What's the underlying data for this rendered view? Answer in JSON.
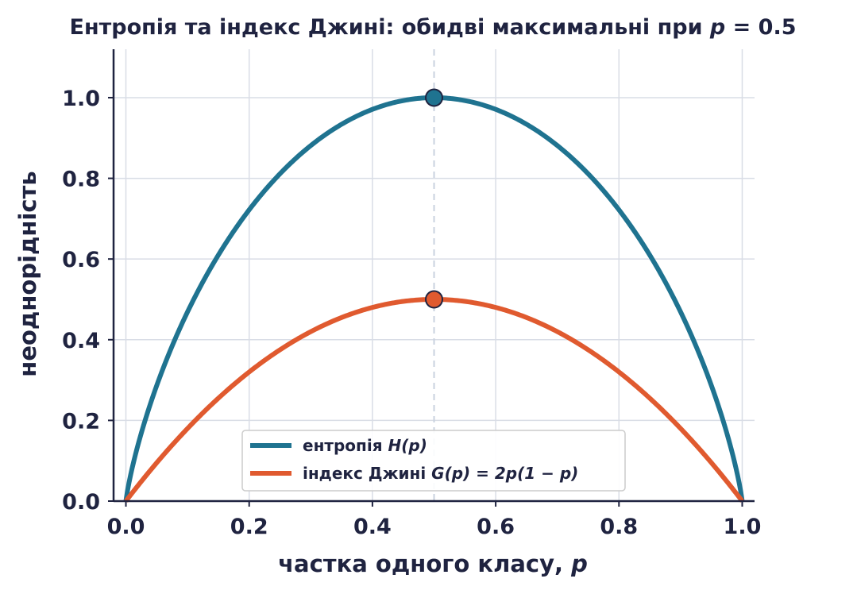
{
  "chart_data": {
    "type": "line",
    "title": "Ентропія та індекс Джині: обидві максимальні при",
    "title_var": "p",
    "title_rel": " = 0.5",
    "xlabel": "частка одного класу,",
    "xlabel_var": "p",
    "ylabel": "неоднорідність",
    "xlim": [
      -0.02,
      1.02
    ],
    "ylim": [
      0,
      1.12
    ],
    "x_ticks": [
      "0.0",
      "0.2",
      "0.4",
      "0.6",
      "0.8",
      "1.0"
    ],
    "y_ticks": [
      "0.0",
      "0.2",
      "0.4",
      "0.6",
      "0.8",
      "1.0"
    ],
    "grid": true,
    "legend_position": "lower-center",
    "vline_x": 0.5,
    "series": [
      {
        "name": "ентропія",
        "formula": "H(p)",
        "function": "entropy",
        "color": "#1f7390",
        "max_point": {
          "x": 0.5,
          "y": 1.0
        }
      },
      {
        "name": "індекс Джині",
        "formula": "G(p) = 2p(1 − p)",
        "function": "gini",
        "color": "#e05a2f",
        "max_point": {
          "x": 0.5,
          "y": 0.5
        }
      }
    ]
  },
  "colors": {
    "axis": "#1f2340",
    "grid": "#d9dde6",
    "vline": "#c9d2df"
  }
}
